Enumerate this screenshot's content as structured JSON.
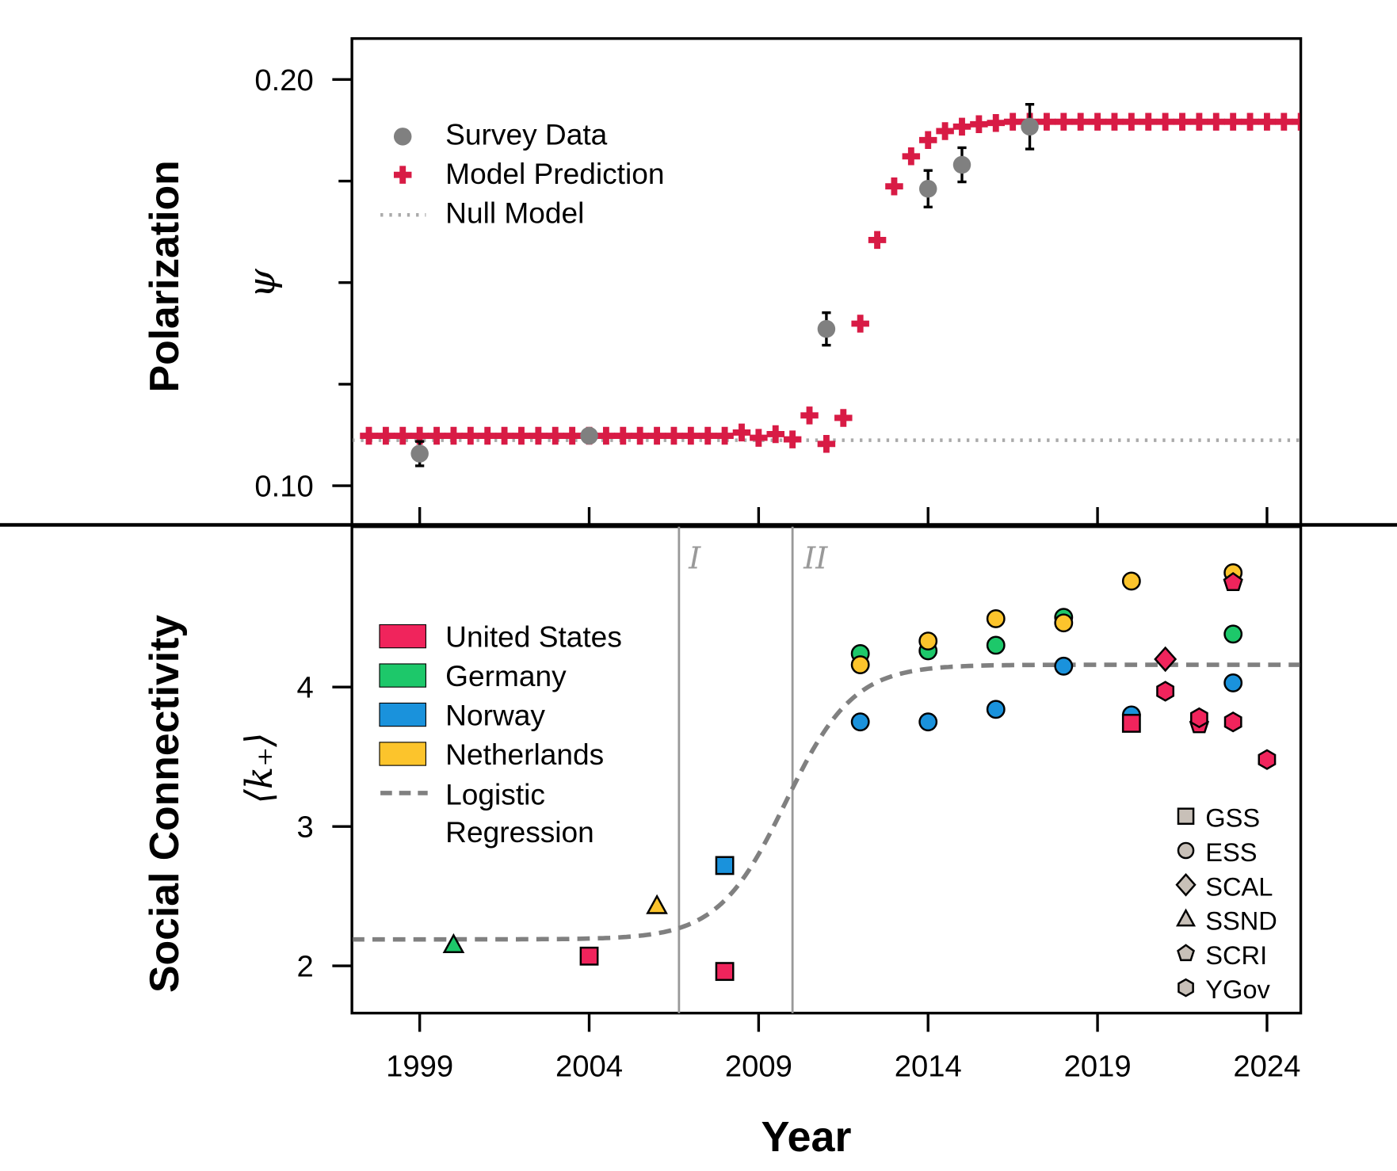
{
  "chart_data": [
    {
      "type": "scatter",
      "panel": "top",
      "ylabel": "Polarization",
      "ysymbol": "ψ",
      "xlim": [
        1997,
        2025
      ],
      "ylim": [
        0.0906,
        0.21
      ],
      "yticks": [
        "0.10",
        "0.20"
      ],
      "ytick_values": [
        0.1,
        0.2
      ],
      "minor_yticks": [
        0.125,
        0.15,
        0.175
      ],
      "xticks": [
        1999,
        2004,
        2009,
        2014,
        2019,
        2024
      ],
      "grid": false,
      "legend_position": "top-left",
      "legend": [
        "Survey Data",
        "Model Prediction",
        "Null Model"
      ],
      "colors": {
        "survey": "#808080",
        "model": "#d81b45",
        "null": "#aaaaaa"
      },
      "survey_data": [
        {
          "x": 1999,
          "y": 0.1079,
          "err": 0.003
        },
        {
          "x": 2004,
          "y": 0.1123,
          "err": 0.001
        },
        {
          "x": 2011,
          "y": 0.1386,
          "err": 0.004
        },
        {
          "x": 2014,
          "y": 0.1731,
          "err": 0.0045
        },
        {
          "x": 2015,
          "y": 0.179,
          "err": 0.0042
        },
        {
          "x": 2017,
          "y": 0.1884,
          "err": 0.0055
        }
      ],
      "model_prediction": [
        [
          1997.5,
          0.1123
        ],
        [
          1998,
          0.1123
        ],
        [
          1998.5,
          0.1123
        ],
        [
          1999,
          0.1123
        ],
        [
          1999.5,
          0.1123
        ],
        [
          2000,
          0.1123
        ],
        [
          2000.5,
          0.1123
        ],
        [
          2001,
          0.1123
        ],
        [
          2001.5,
          0.1123
        ],
        [
          2002,
          0.1123
        ],
        [
          2002.5,
          0.1123
        ],
        [
          2003,
          0.1123
        ],
        [
          2003.5,
          0.1123
        ],
        [
          2004,
          0.1123
        ],
        [
          2004.5,
          0.1123
        ],
        [
          2005,
          0.1123
        ],
        [
          2005.5,
          0.1123
        ],
        [
          2006,
          0.1123
        ],
        [
          2006.5,
          0.1123
        ],
        [
          2007,
          0.1123
        ],
        [
          2007.5,
          0.1123
        ],
        [
          2008,
          0.1123
        ],
        [
          2008.5,
          0.1131
        ],
        [
          2009,
          0.1118
        ],
        [
          2009.5,
          0.1127
        ],
        [
          2010,
          0.1114
        ],
        [
          2010.5,
          0.1173
        ],
        [
          2011,
          0.1103
        ],
        [
          2011.5,
          0.1167
        ],
        [
          2012,
          0.1399
        ],
        [
          2012.5,
          0.1605
        ],
        [
          2013,
          0.1737
        ],
        [
          2013.5,
          0.1811
        ],
        [
          2014,
          0.1851
        ],
        [
          2014.5,
          0.1873
        ],
        [
          2015,
          0.1884
        ],
        [
          2015.5,
          0.189
        ],
        [
          2016,
          0.1893
        ],
        [
          2016.5,
          0.1896
        ],
        [
          2017,
          0.1896
        ],
        [
          2017.5,
          0.1896
        ],
        [
          2018,
          0.1896
        ],
        [
          2018.5,
          0.1896
        ],
        [
          2019,
          0.1896
        ],
        [
          2019.5,
          0.1896
        ],
        [
          2020,
          0.1896
        ],
        [
          2020.5,
          0.1896
        ],
        [
          2021,
          0.1896
        ],
        [
          2021.5,
          0.1896
        ],
        [
          2022,
          0.1896
        ],
        [
          2022.5,
          0.1896
        ],
        [
          2023,
          0.1896
        ],
        [
          2023.5,
          0.1896
        ],
        [
          2024,
          0.1896
        ],
        [
          2024.5,
          0.1896
        ],
        [
          2025,
          0.1896
        ]
      ],
      "null_model": 0.1112
    },
    {
      "type": "scatter",
      "panel": "bottom",
      "ylabel": "Social Connectivity",
      "ysymbol": "⟨k₊⟩",
      "xlabel": "Year",
      "xlim": [
        1997,
        2025
      ],
      "ylim": [
        1.66,
        5.15
      ],
      "yticks": [
        2,
        3,
        4
      ],
      "xticks": [
        "1999",
        "2004",
        "2009",
        "2014",
        "2019",
        "2024"
      ],
      "xtick_values": [
        1999,
        2004,
        2009,
        2014,
        2019,
        2024
      ],
      "grid": false,
      "vlines": [
        {
          "x": 2006.65,
          "label": "I"
        },
        {
          "x": 2010,
          "label": "II"
        }
      ],
      "legend_position": "left",
      "legend": [
        "United States",
        "Germany",
        "Norway",
        "Netherlands",
        "Logistic",
        "Regression"
      ],
      "shape_legend_position": "bottom-right",
      "shape_legend": [
        {
          "label": "GSS",
          "shape": "square"
        },
        {
          "label": "ESS",
          "shape": "circle"
        },
        {
          "label": "SCAL",
          "shape": "diamond"
        },
        {
          "label": "SSND",
          "shape": "triangle"
        },
        {
          "label": "SCRI",
          "shape": "pentagon"
        },
        {
          "label": "YGov",
          "shape": "hexagon"
        }
      ],
      "colors": {
        "United States": "#f0245c",
        "Germany": "#1dc86a",
        "Norway": "#1a92dc",
        "Netherlands": "#fcc42c",
        "regression": "#808080",
        "shape_legend": "#c8c0b8",
        "vline": "#999999"
      },
      "logistic": {
        "low": 2.19,
        "high": 4.16,
        "midpoint": 2009.8,
        "rate": 1.0
      },
      "points": [
        {
          "x": 2000,
          "y": 2.15,
          "country": "Germany",
          "survey": "SSND"
        },
        {
          "x": 2004,
          "y": 2.07,
          "country": "United States",
          "survey": "GSS"
        },
        {
          "x": 2006,
          "y": 2.43,
          "country": "Netherlands",
          "survey": "SSND"
        },
        {
          "x": 2008,
          "y": 2.72,
          "country": "Norway",
          "survey": "GSS"
        },
        {
          "x": 2008,
          "y": 1.96,
          "country": "United States",
          "survey": "GSS"
        },
        {
          "x": 2012,
          "y": 4.24,
          "country": "Germany",
          "survey": "ESS"
        },
        {
          "x": 2012,
          "y": 4.16,
          "country": "Netherlands",
          "survey": "ESS"
        },
        {
          "x": 2012,
          "y": 3.75,
          "country": "Norway",
          "survey": "ESS"
        },
        {
          "x": 2014,
          "y": 4.26,
          "country": "Germany",
          "survey": "ESS"
        },
        {
          "x": 2014,
          "y": 4.33,
          "country": "Netherlands",
          "survey": "ESS"
        },
        {
          "x": 2014,
          "y": 3.75,
          "country": "Norway",
          "survey": "ESS"
        },
        {
          "x": 2016,
          "y": 4.3,
          "country": "Germany",
          "survey": "ESS"
        },
        {
          "x": 2016,
          "y": 4.49,
          "country": "Netherlands",
          "survey": "ESS"
        },
        {
          "x": 2016,
          "y": 3.84,
          "country": "Norway",
          "survey": "ESS"
        },
        {
          "x": 2018,
          "y": 4.5,
          "country": "Germany",
          "survey": "ESS"
        },
        {
          "x": 2018,
          "y": 4.46,
          "country": "Netherlands",
          "survey": "ESS"
        },
        {
          "x": 2018,
          "y": 4.15,
          "country": "Norway",
          "survey": "ESS"
        },
        {
          "x": 2020,
          "y": 4.76,
          "country": "Netherlands",
          "survey": "ESS"
        },
        {
          "x": 2020,
          "y": 3.8,
          "country": "Norway",
          "survey": "ESS"
        },
        {
          "x": 2020,
          "y": 3.74,
          "country": "United States",
          "survey": "GSS"
        },
        {
          "x": 2021,
          "y": 4.2,
          "country": "United States",
          "survey": "SCAL"
        },
        {
          "x": 2021,
          "y": 3.97,
          "country": "United States",
          "survey": "YGov"
        },
        {
          "x": 2022,
          "y": 3.73,
          "country": "United States",
          "survey": "SCRI"
        },
        {
          "x": 2022,
          "y": 3.78,
          "country": "United States",
          "survey": "YGov"
        },
        {
          "x": 2023,
          "y": 4.82,
          "country": "Netherlands",
          "survey": "ESS"
        },
        {
          "x": 2023,
          "y": 4.75,
          "country": "United States",
          "survey": "SCRI"
        },
        {
          "x": 2023,
          "y": 4.38,
          "country": "Germany",
          "survey": "ESS"
        },
        {
          "x": 2023,
          "y": 4.03,
          "country": "Norway",
          "survey": "ESS"
        },
        {
          "x": 2023,
          "y": 3.75,
          "country": "United States",
          "survey": "YGov"
        },
        {
          "x": 2024,
          "y": 3.48,
          "country": "United States",
          "survey": "YGov"
        }
      ]
    }
  ]
}
